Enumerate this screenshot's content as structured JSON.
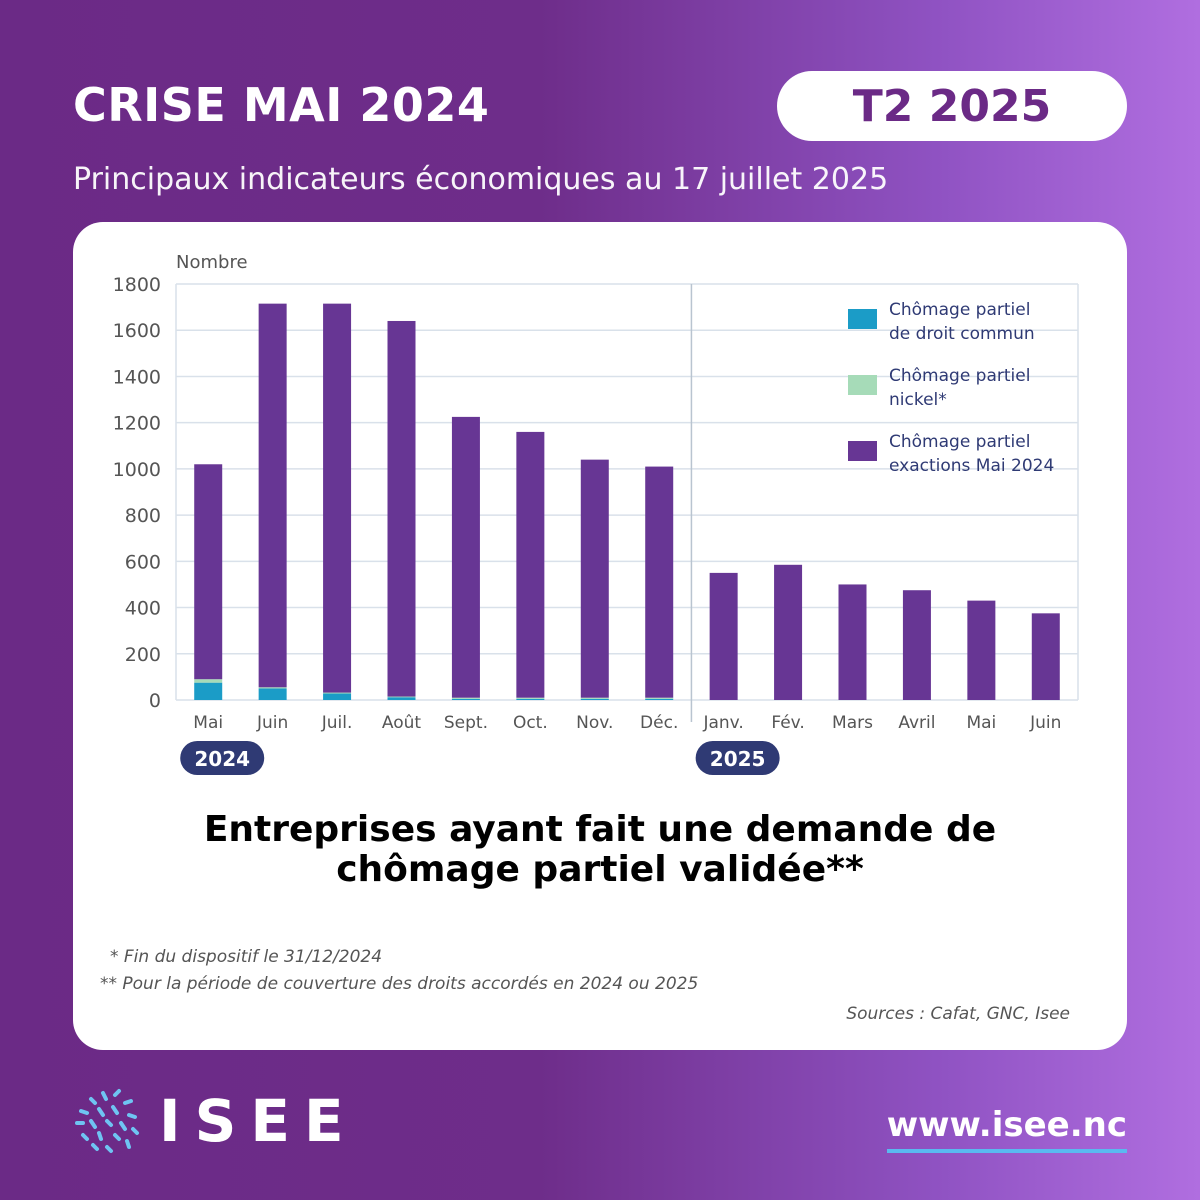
{
  "header": {
    "title": "CRISE MAI 2024",
    "badge": "T2 2025",
    "subtitle": "Principaux indicateurs économiques au 17 juillet 2025"
  },
  "colors": {
    "droit_commun": "#1b9cc7",
    "nickel": "#a6dbb8",
    "exactions": "#673694",
    "year_badge": "#2f3a74",
    "legend_text": "#2f3a74",
    "axis_text": "#555555",
    "grid": "#d9e1ea"
  },
  "chart_data": {
    "type": "bar",
    "stacked": true,
    "ylabel": "Nombre",
    "ylim": [
      0,
      1800
    ],
    "yticks": [
      0,
      200,
      400,
      600,
      800,
      1000,
      1200,
      1400,
      1600,
      1800
    ],
    "categories": [
      "Mai",
      "Juin",
      "Juil.",
      "Août",
      "Sept.",
      "Oct.",
      "Nov.",
      "Déc.",
      "Janv.",
      "Fév.",
      "Mars",
      "Avril",
      "Mai",
      "Juin"
    ],
    "year_groups": [
      {
        "label": "2024",
        "start_index": 0
      },
      {
        "label": "2025",
        "start_index": 8
      }
    ],
    "series": [
      {
        "name": "Chômage partiel de droit commun",
        "legend_lines": [
          "Chômage partiel",
          "de droit commun"
        ],
        "color_key": "droit_commun",
        "values": [
          75,
          50,
          28,
          12,
          5,
          5,
          5,
          5,
          0,
          0,
          0,
          0,
          0,
          0
        ]
      },
      {
        "name": "Chômage partiel nickel*",
        "legend_lines": [
          "Chômage partiel",
          "nickel*"
        ],
        "color_key": "nickel",
        "values": [
          15,
          5,
          4,
          3,
          5,
          5,
          5,
          5,
          0,
          0,
          0,
          0,
          0,
          0
        ]
      },
      {
        "name": "Chômage partiel exactions Mai 2024",
        "legend_lines": [
          "Chômage partiel",
          "exactions Mai 2024"
        ],
        "color_key": "exactions",
        "values": [
          930,
          1660,
          1683,
          1625,
          1215,
          1150,
          1030,
          1000,
          550,
          585,
          500,
          475,
          430,
          375
        ]
      }
    ]
  },
  "caption": {
    "line1": "Entreprises ayant fait une demande de",
    "line2": "chômage partiel validée**"
  },
  "footnotes": {
    "note1": "* Fin du dispositif le 31/12/2024",
    "note2": "** Pour la période de couverture des droits accordés en 2024 ou 2025",
    "sources": "Sources : Cafat, GNC, Isee"
  },
  "footer": {
    "logo_text": "ISEE",
    "website": "www.isee.nc"
  }
}
